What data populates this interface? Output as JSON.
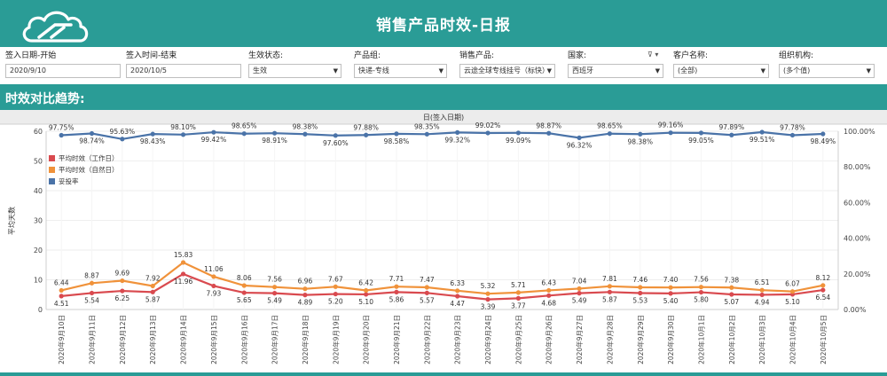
{
  "header": {
    "title": "销售产品时效-日报",
    "logo": "cloud-logo"
  },
  "filters": [
    {
      "label": "签入日期-开始",
      "value": "2020/9/10",
      "type": "date"
    },
    {
      "label": "签入时间-结束",
      "value": "2020/10/5",
      "type": "date"
    },
    {
      "label": "生效状态:",
      "value": "生效",
      "type": "select"
    },
    {
      "label": "产品组:",
      "value": "快递-专线",
      "type": "select"
    },
    {
      "label": "销售产品:",
      "value": "云途全球专线挂号（标快）",
      "type": "select"
    },
    {
      "label": "国家:",
      "value": "西班牙",
      "type": "select"
    },
    {
      "label": "客户名称:",
      "value": "(全部)",
      "type": "select"
    },
    {
      "label": "组织机构:",
      "value": "(多个值)",
      "type": "select"
    }
  ],
  "section_title": "时效对比趋势:",
  "chart_data": {
    "type": "line",
    "title": "日(签入日期)",
    "ylabel": "平均天数",
    "ylim": [
      0,
      60
    ],
    "y2lim": [
      0,
      100
    ],
    "y_ticks": [
      "0",
      "10",
      "20",
      "30",
      "40",
      "50",
      "60"
    ],
    "y2_ticks": [
      "0.00%",
      "20.00%",
      "40.00%",
      "60.00%",
      "80.00%",
      "100.00%"
    ],
    "legend_position": "top-left",
    "categories": [
      "2020年9月10日",
      "2020年9月11日",
      "2020年9月12日",
      "2020年9月13日",
      "2020年9月14日",
      "2020年9月15日",
      "2020年9月16日",
      "2020年9月17日",
      "2020年9月18日",
      "2020年9月19日",
      "2020年9月20日",
      "2020年9月21日",
      "2020年9月22日",
      "2020年9月23日",
      "2020年9月24日",
      "2020年9月25日",
      "2020年9月26日",
      "2020年9月27日",
      "2020年9月28日",
      "2020年9月29日",
      "2020年9月30日",
      "2020年10月1日",
      "2020年10月2日",
      "2020年10月3日",
      "2020年10月4日",
      "2020年10月5日"
    ],
    "series": [
      {
        "name": "平均时效（工作日）",
        "axis": "left",
        "color": "#d94a4f",
        "values": [
          4.51,
          5.54,
          6.25,
          5.87,
          11.96,
          7.93,
          5.65,
          5.49,
          4.89,
          5.2,
          5.1,
          5.86,
          5.57,
          4.47,
          3.39,
          3.77,
          4.68,
          5.49,
          5.87,
          5.53,
          5.4,
          5.8,
          5.07,
          4.94,
          5.1,
          6.54
        ],
        "labels": [
          "4.51",
          "5.54",
          "6.25",
          "5.87",
          "11.96",
          "7.93",
          "5.65",
          "5.49",
          "4.89",
          "5.20",
          "5.10",
          "5.86",
          "5.57",
          "4.47",
          "3.39",
          "3.77",
          "4.68",
          "5.49",
          "5.87",
          "5.53",
          "5.40",
          "5.80",
          "5.07",
          "4.94",
          "5.10",
          "6.54"
        ]
      },
      {
        "name": "平均时效（自然日）",
        "axis": "left",
        "color": "#f0923a",
        "values": [
          6.44,
          8.87,
          9.69,
          7.92,
          15.83,
          11.06,
          8.06,
          7.56,
          6.96,
          7.67,
          6.42,
          7.71,
          7.47,
          6.33,
          5.32,
          5.71,
          6.43,
          7.04,
          7.81,
          7.46,
          7.4,
          7.56,
          7.38,
          6.51,
          6.07,
          8.12
        ],
        "labels": [
          "6.44",
          "8.87",
          "9.69",
          "7.92",
          "15.83",
          "11.06",
          "8.06",
          "7.56",
          "6.96",
          "7.67",
          "6.42",
          "7.71",
          "7.47",
          "6.33",
          "5.32",
          "5.71",
          "6.43",
          "7.04",
          "7.81",
          "7.46",
          "7.40",
          "7.56",
          "7.38",
          "6.51",
          "6.07",
          "8.12"
        ]
      },
      {
        "name": "妥投率",
        "axis": "right",
        "color": "#4a73a8",
        "values": [
          97.75,
          98.74,
          95.63,
          98.43,
          98.1,
          99.42,
          98.65,
          98.91,
          98.38,
          97.6,
          97.88,
          98.58,
          98.35,
          99.32,
          99.02,
          99.09,
          98.87,
          96.32,
          98.65,
          98.38,
          99.16,
          99.05,
          97.89,
          99.51,
          97.78,
          98.49
        ],
        "labels": [
          "97.75%",
          "98.74%",
          "95.63%",
          "98.43%",
          "98.10%",
          "99.42%",
          "98.65%",
          "98.91%",
          "98.38%",
          "97.60%",
          "97.88%",
          "98.58%",
          "98.35%",
          "99.32%",
          "99.02%",
          "99.09%",
          "98.87%",
          "96.32%",
          "98.65%",
          "98.38%",
          "99.16%",
          "99.05%",
          "97.89%",
          "99.51%",
          "97.78%",
          "98.49%"
        ]
      }
    ]
  }
}
